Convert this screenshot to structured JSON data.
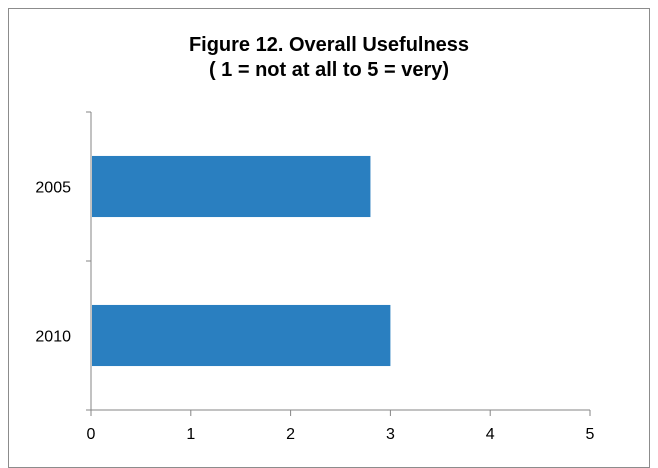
{
  "chart_data": {
    "type": "bar",
    "orientation": "horizontal",
    "title_line1": "Figure 12. Overall Usefulness",
    "title_line2": "( 1 = not at all to 5 = very)",
    "categories": [
      "2005",
      "2010"
    ],
    "values": [
      2.8,
      3.0
    ],
    "xlim": [
      0,
      5
    ],
    "xticks": [
      "0",
      "1",
      "2",
      "3",
      "4",
      "5"
    ],
    "bar_color": "#2a7fc0",
    "grid": false,
    "legend": "none"
  }
}
